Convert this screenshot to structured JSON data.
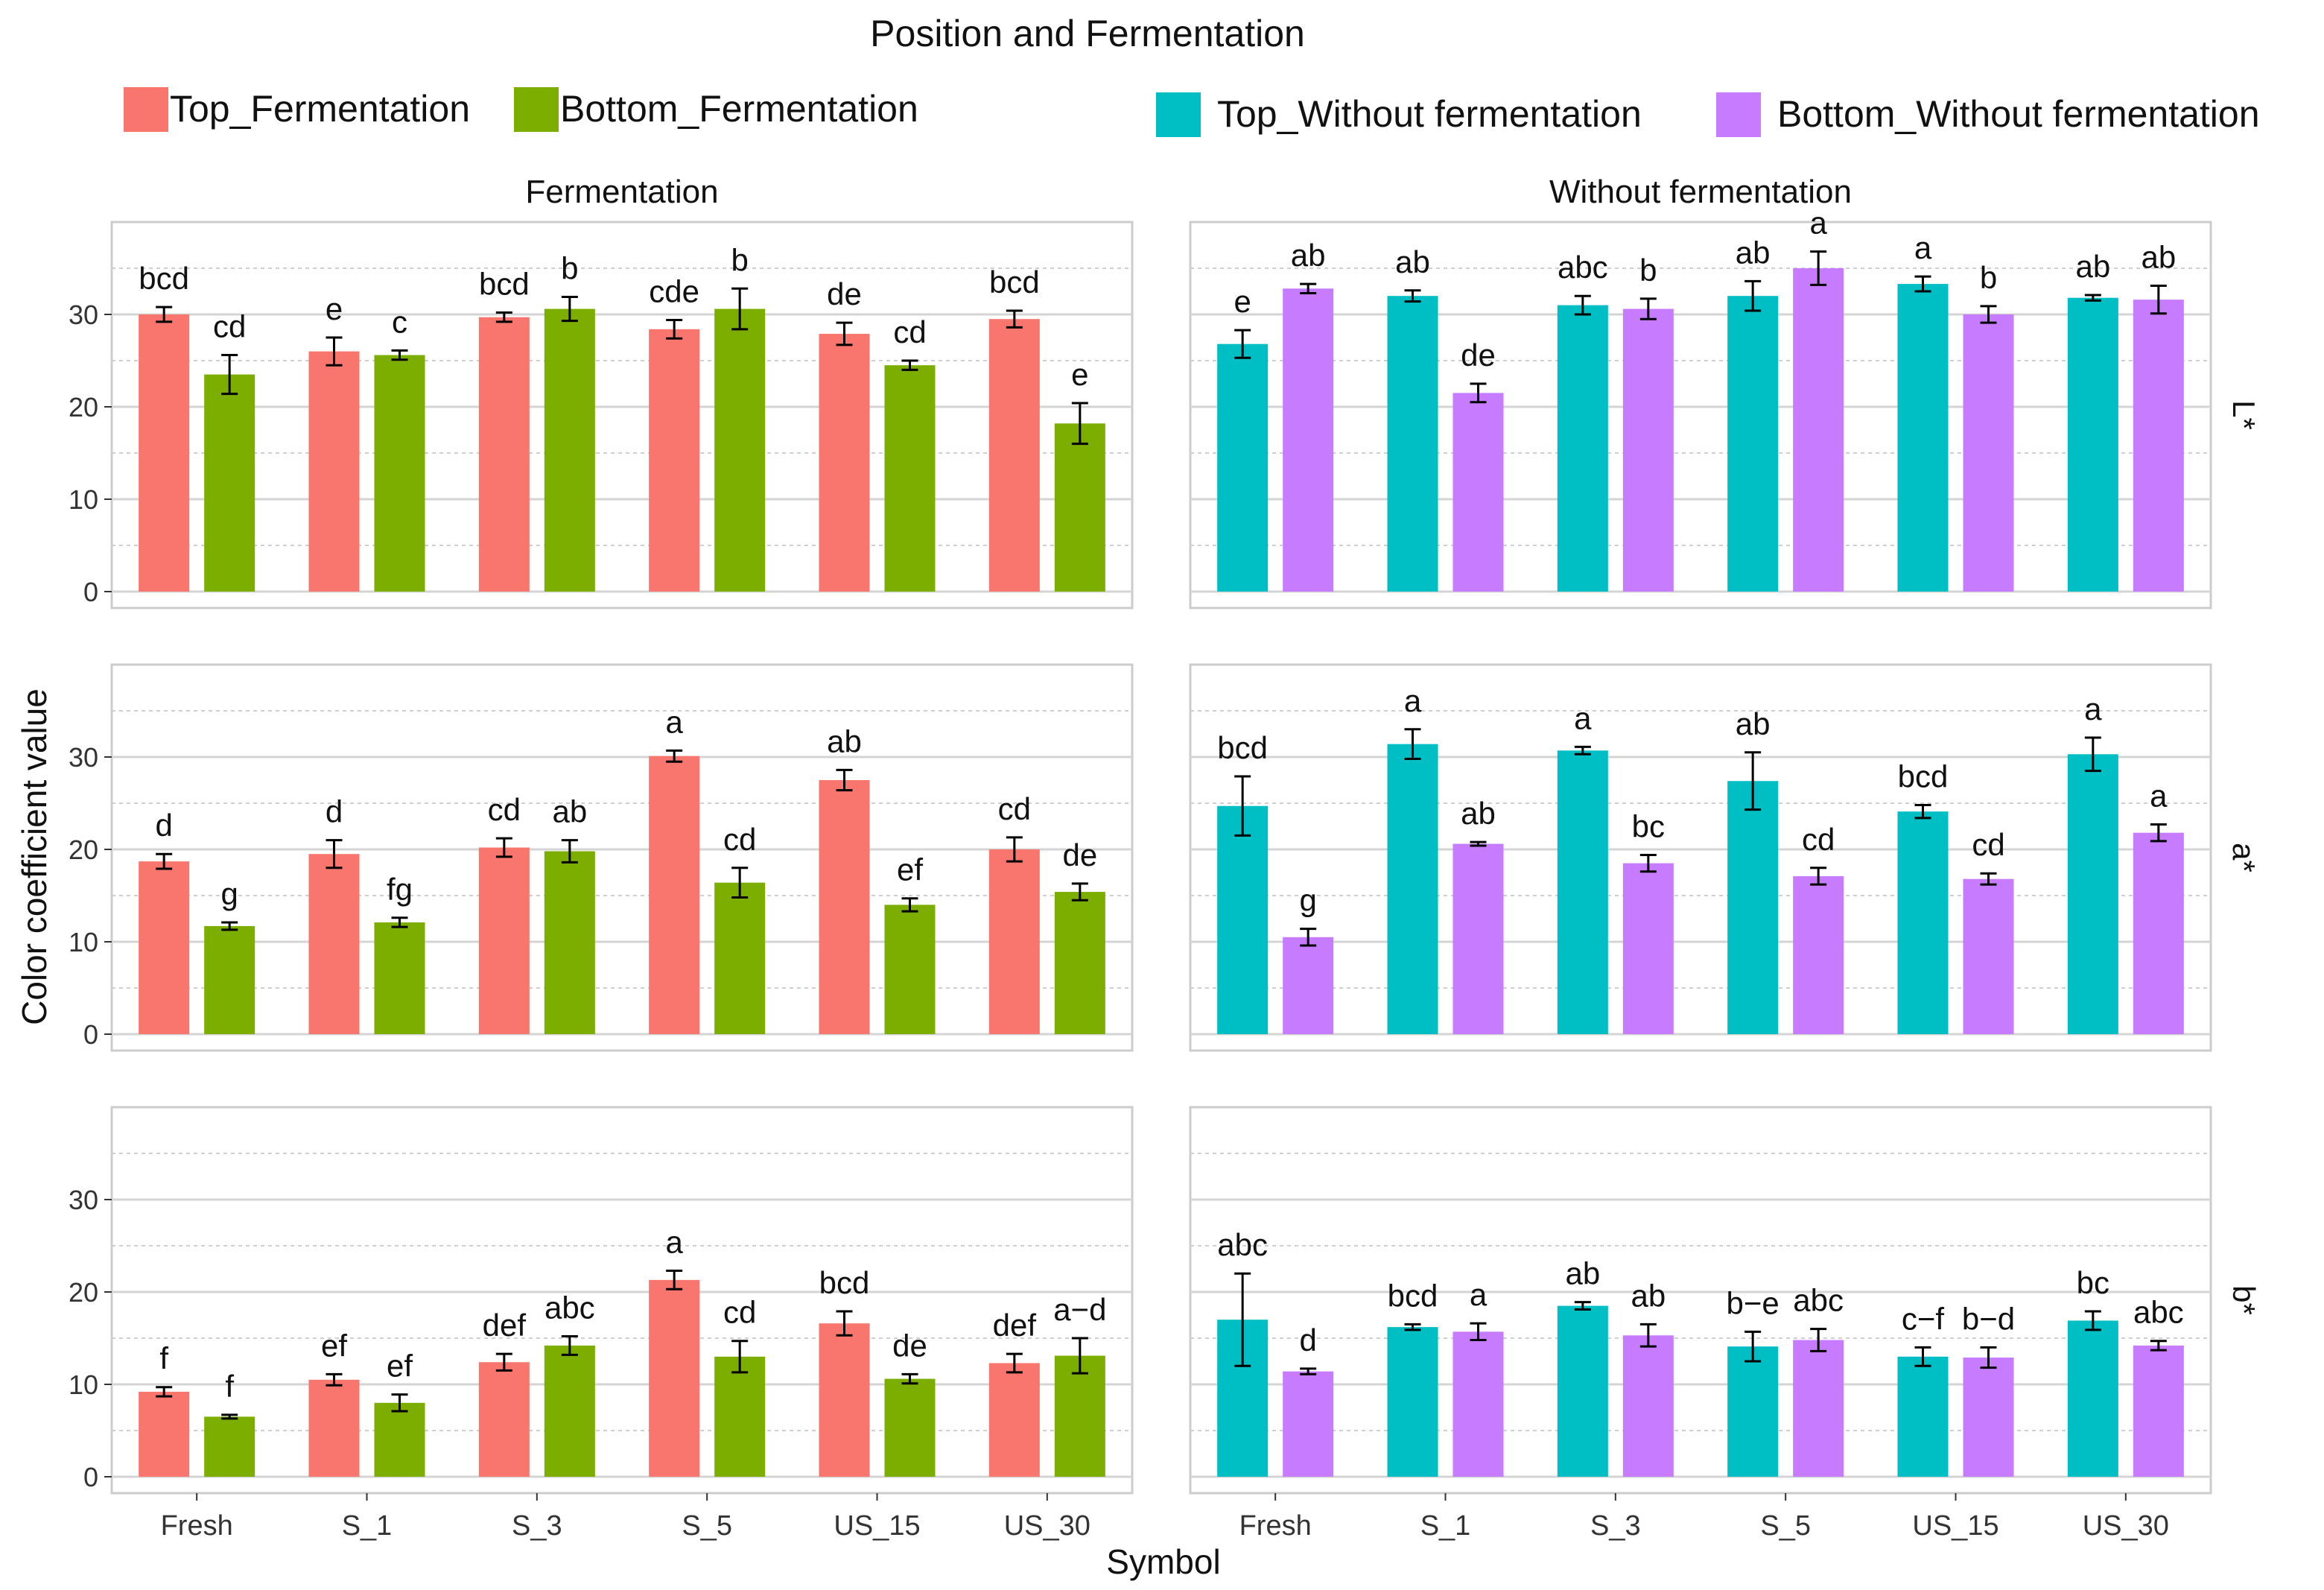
{
  "chart_data": {
    "type": "bar",
    "title": "Position and Fermentation",
    "xlabel": "Symbol",
    "ylabel": "Color coefficient value",
    "ylim": [
      0,
      40
    ],
    "yticks": [
      0,
      10,
      20,
      30
    ],
    "grid": true,
    "legend_placement": "top",
    "categories": [
      "Fresh",
      "S_1",
      "S_3",
      "S_5",
      "US_15",
      "US_30"
    ],
    "legend": [
      {
        "name": "Top_Fermentation",
        "color": "#F8766D"
      },
      {
        "name": "Bottom_Fermentation",
        "color": "#7CAE00"
      },
      {
        "name": "Top_Without fermentation",
        "color": "#00BFC4"
      },
      {
        "name": "Bottom_Without fermentation",
        "color": "#C77CFF"
      }
    ],
    "columns": [
      {
        "label": "Fermentation",
        "series_colors": [
          "#F8766D",
          "#7CAE00"
        ]
      },
      {
        "label": "Without fermentation",
        "series_colors": [
          "#00BFC4",
          "#C77CFF"
        ]
      }
    ],
    "rows": [
      {
        "label": "L*",
        "panels": [
          {
            "series": [
              {
                "name": "Top_Fermentation",
                "values": [
                  30.0,
                  26.0,
                  29.7,
                  28.4,
                  27.9,
                  29.5
                ],
                "errors": [
                  0.8,
                  1.5,
                  0.5,
                  1.0,
                  1.2,
                  0.9
                ],
                "letters": [
                  "bcd",
                  "e",
                  "bcd",
                  "cde",
                  "de",
                  "bcd"
                ]
              },
              {
                "name": "Bottom_Fermentation",
                "values": [
                  23.5,
                  25.6,
                  30.6,
                  30.6,
                  24.5,
                  18.2
                ],
                "errors": [
                  2.1,
                  0.5,
                  1.3,
                  2.2,
                  0.5,
                  2.2
                ],
                "letters": [
                  "cd",
                  "c",
                  "b",
                  "b",
                  "cd",
                  "e"
                ]
              }
            ]
          },
          {
            "series": [
              {
                "name": "Top_Without fermentation",
                "values": [
                  26.8,
                  32.0,
                  31.0,
                  32.0,
                  33.3,
                  31.8
                ],
                "errors": [
                  1.5,
                  0.6,
                  1.0,
                  1.6,
                  0.8,
                  0.3
                ],
                "letters": [
                  "e",
                  "ab",
                  "abc",
                  "ab",
                  "a",
                  "ab"
                ]
              },
              {
                "name": "Bottom_Without fermentation",
                "values": [
                  32.8,
                  21.5,
                  30.6,
                  35.0,
                  30.0,
                  31.6
                ],
                "errors": [
                  0.5,
                  1.0,
                  1.1,
                  1.8,
                  0.9,
                  1.5
                ],
                "letters": [
                  "ab",
                  "de",
                  "b",
                  "a",
                  "b",
                  "ab"
                ]
              }
            ]
          }
        ]
      },
      {
        "label": "a*",
        "panels": [
          {
            "series": [
              {
                "name": "Top_Fermentation",
                "values": [
                  18.7,
                  19.5,
                  20.2,
                  30.1,
                  27.5,
                  20.0
                ],
                "errors": [
                  0.8,
                  1.5,
                  1.0,
                  0.6,
                  1.1,
                  1.3
                ],
                "letters": [
                  "d",
                  "d",
                  "cd",
                  "a",
                  "ab",
                  "cd"
                ]
              },
              {
                "name": "Bottom_Fermentation",
                "values": [
                  11.7,
                  12.1,
                  19.8,
                  16.4,
                  14.0,
                  15.4
                ],
                "errors": [
                  0.4,
                  0.5,
                  1.2,
                  1.6,
                  0.7,
                  0.9
                ],
                "letters": [
                  "g",
                  "fg",
                  "ab",
                  "cd",
                  "ef",
                  "de"
                ]
              }
            ]
          },
          {
            "series": [
              {
                "name": "Top_Without fermentation",
                "values": [
                  24.7,
                  31.4,
                  30.7,
                  27.4,
                  24.1,
                  30.3
                ],
                "errors": [
                  3.2,
                  1.6,
                  0.4,
                  3.1,
                  0.7,
                  1.8
                ],
                "letters": [
                  "bcd",
                  "a",
                  "a",
                  "ab",
                  "bcd",
                  "a"
                ]
              },
              {
                "name": "Bottom_Without fermentation",
                "values": [
                  10.5,
                  20.6,
                  18.5,
                  17.1,
                  16.8,
                  21.8
                ],
                "errors": [
                  0.9,
                  0.2,
                  0.9,
                  0.9,
                  0.6,
                  0.9
                ],
                "letters": [
                  "g",
                  "ab",
                  "bc",
                  "cd",
                  "cd",
                  "a"
                ]
              }
            ]
          }
        ]
      },
      {
        "label": "b*",
        "panels": [
          {
            "series": [
              {
                "name": "Top_Fermentation",
                "values": [
                  9.2,
                  10.5,
                  12.4,
                  21.3,
                  16.6,
                  12.3
                ],
                "errors": [
                  0.5,
                  0.6,
                  0.9,
                  1.0,
                  1.3,
                  1.0
                ],
                "letters": [
                  "f",
                  "ef",
                  "def",
                  "a",
                  "bcd",
                  "def"
                ]
              },
              {
                "name": "Bottom_Fermentation",
                "values": [
                  6.5,
                  8.0,
                  14.2,
                  13.0,
                  10.6,
                  13.1
                ],
                "errors": [
                  0.2,
                  0.9,
                  1.0,
                  1.7,
                  0.5,
                  1.9
                ],
                "letters": [
                  "f",
                  "ef",
                  "abc",
                  "cd",
                  "de",
                  "a−d"
                ]
              }
            ]
          },
          {
            "series": [
              {
                "name": "Top_Without fermentation",
                "values": [
                  17.0,
                  16.2,
                  18.5,
                  14.1,
                  13.0,
                  16.9
                ],
                "errors": [
                  5.0,
                  0.3,
                  0.4,
                  1.6,
                  1.0,
                  1.0
                ],
                "letters": [
                  "abc",
                  "bcd",
                  "ab",
                  "b−e",
                  "c−f",
                  "bc"
                ]
              },
              {
                "name": "Bottom_Without fermentation",
                "values": [
                  11.4,
                  15.7,
                  15.3,
                  14.8,
                  12.9,
                  14.2
                ],
                "errors": [
                  0.3,
                  0.9,
                  1.2,
                  1.2,
                  1.1,
                  0.5
                ],
                "letters": [
                  "d",
                  "a",
                  "ab",
                  "abc",
                  "b−d",
                  "abc"
                ]
              }
            ]
          }
        ]
      }
    ]
  }
}
